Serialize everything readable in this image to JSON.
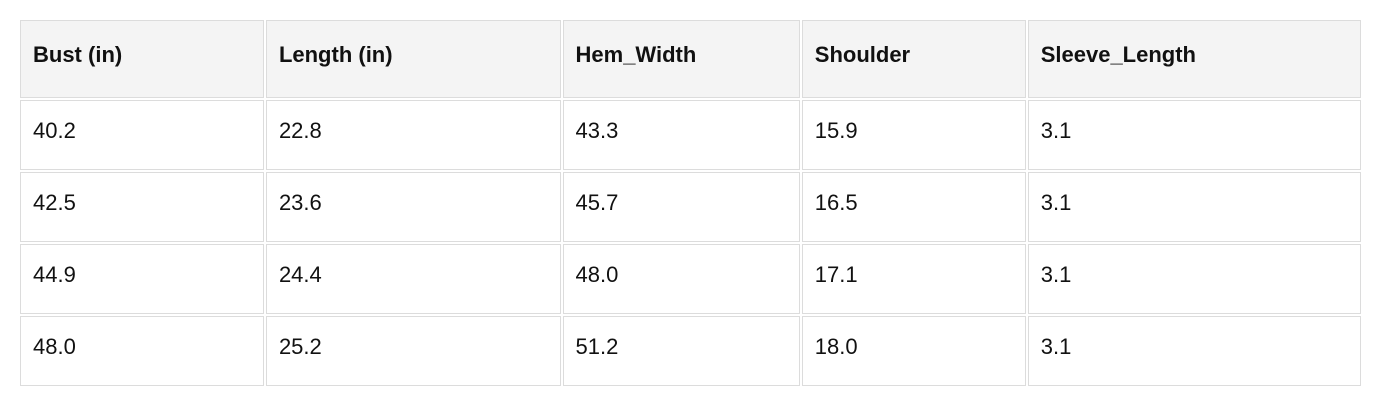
{
  "table": {
    "columns": [
      {
        "label": "Bust (in)"
      },
      {
        "label": "Length (in)"
      },
      {
        "label": "Hem_Width"
      },
      {
        "label": "Shoulder"
      },
      {
        "label": "Sleeve_Length"
      }
    ],
    "rows": [
      [
        "40.2",
        "22.8",
        "43.3",
        "15.9",
        "3.1"
      ],
      [
        "42.5",
        "23.6",
        "45.7",
        "16.5",
        "3.1"
      ],
      [
        "44.9",
        "24.4",
        "48.0",
        "17.1",
        "3.1"
      ],
      [
        "48.0",
        "25.2",
        "51.2",
        "18.0",
        "3.1"
      ]
    ],
    "colors": {
      "header_bg": "#f4f4f4",
      "border": "#dcdcdc",
      "text": "#111111"
    }
  }
}
